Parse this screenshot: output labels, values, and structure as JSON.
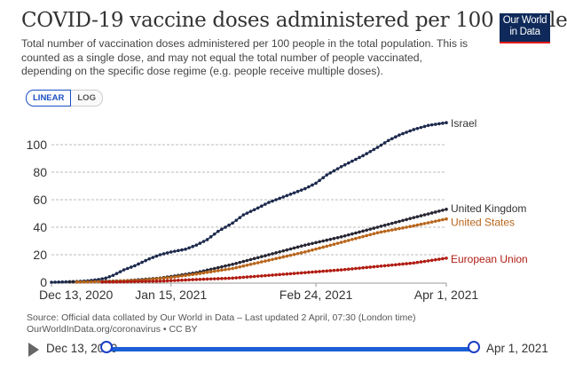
{
  "header": {
    "title": "COVID-19 vaccine doses administered per 100 people",
    "subtitle": "Total number of vaccination doses administered per 100 people in the total population. This is counted as a single dose, and may not equal the total number of people vaccinated, depending on the specific dose regime (e.g. people receive multiple doses).",
    "logo_line1": "Our World",
    "logo_line2": "in Data"
  },
  "scale_toggle": {
    "options": [
      "LINEAR",
      "LOG"
    ],
    "selected": "LINEAR"
  },
  "footer": {
    "source": "Source: Official data collated by Our World in Data – Last updated 2 April, 07:30 (London time)",
    "link": "OurWorldInData.org/coronavirus • CC BY"
  },
  "timeline": {
    "start_label": "Dec 13, 2020",
    "end_label": "Apr 1, 2021",
    "start_fraction": 0,
    "end_fraction": 1
  },
  "chart_data": {
    "type": "line",
    "title": "COVID-19 vaccine doses administered per 100 people",
    "xlabel": "",
    "ylabel": "",
    "x_unit": "days since Dec 13, 2020",
    "xlim": [
      0,
      109
    ],
    "ylim": [
      0,
      120
    ],
    "grid": true,
    "y_ticks": [
      0,
      20,
      40,
      60,
      80,
      100
    ],
    "x_ticks": [
      {
        "day": 0,
        "label": "Dec 13, 2020"
      },
      {
        "day": 33,
        "label": "Jan 15, 2021"
      },
      {
        "day": 73,
        "label": "Feb 24, 2021"
      },
      {
        "day": 109,
        "label": "Apr 1, 2021"
      }
    ],
    "legend_placement": "inline-right",
    "series": [
      {
        "name": "Israel",
        "color": "#1d2a4d",
        "label_color": "#333333",
        "points": [
          [
            0,
            0
          ],
          [
            7,
            0.5
          ],
          [
            10,
            1
          ],
          [
            13,
            2
          ],
          [
            15,
            3
          ],
          [
            17,
            5
          ],
          [
            20,
            9
          ],
          [
            23,
            12
          ],
          [
            27,
            17
          ],
          [
            30,
            20
          ],
          [
            33,
            22
          ],
          [
            37,
            24
          ],
          [
            40,
            27
          ],
          [
            43,
            31
          ],
          [
            46,
            37
          ],
          [
            50,
            43
          ],
          [
            53,
            49
          ],
          [
            57,
            54
          ],
          [
            60,
            58
          ],
          [
            63,
            61
          ],
          [
            66,
            64
          ],
          [
            70,
            68
          ],
          [
            73,
            72
          ],
          [
            76,
            78
          ],
          [
            80,
            84
          ],
          [
            83,
            88
          ],
          [
            86,
            92
          ],
          [
            90,
            98
          ],
          [
            93,
            103
          ],
          [
            96,
            107
          ],
          [
            100,
            111
          ],
          [
            104,
            114
          ],
          [
            109,
            116
          ]
        ]
      },
      {
        "name": "United Kingdom",
        "color": "#262633",
        "label_color": "#333333",
        "points": [
          [
            5,
            0.3
          ],
          [
            10,
            0.5
          ],
          [
            20,
            1
          ],
          [
            30,
            3
          ],
          [
            40,
            7
          ],
          [
            50,
            13
          ],
          [
            60,
            20
          ],
          [
            70,
            27
          ],
          [
            80,
            33
          ],
          [
            90,
            40
          ],
          [
            100,
            47
          ],
          [
            109,
            53
          ]
        ]
      },
      {
        "name": "United States",
        "color": "#b8651b",
        "label_color": "#b8651b",
        "points": [
          [
            7,
            0.1
          ],
          [
            15,
            0.5
          ],
          [
            25,
            1.5
          ],
          [
            33,
            3.5
          ],
          [
            40,
            6
          ],
          [
            50,
            10
          ],
          [
            60,
            16
          ],
          [
            70,
            22
          ],
          [
            80,
            29
          ],
          [
            90,
            36
          ],
          [
            100,
            41
          ],
          [
            109,
            46
          ]
        ]
      },
      {
        "name": "European Union",
        "color": "#b01c12",
        "label_color": "#b01c12",
        "points": [
          [
            14,
            0.1
          ],
          [
            20,
            0.3
          ],
          [
            30,
            0.8
          ],
          [
            40,
            2
          ],
          [
            50,
            3
          ],
          [
            60,
            5
          ],
          [
            70,
            7
          ],
          [
            80,
            9
          ],
          [
            90,
            11.5
          ],
          [
            100,
            14
          ],
          [
            109,
            17.5
          ]
        ]
      }
    ]
  }
}
